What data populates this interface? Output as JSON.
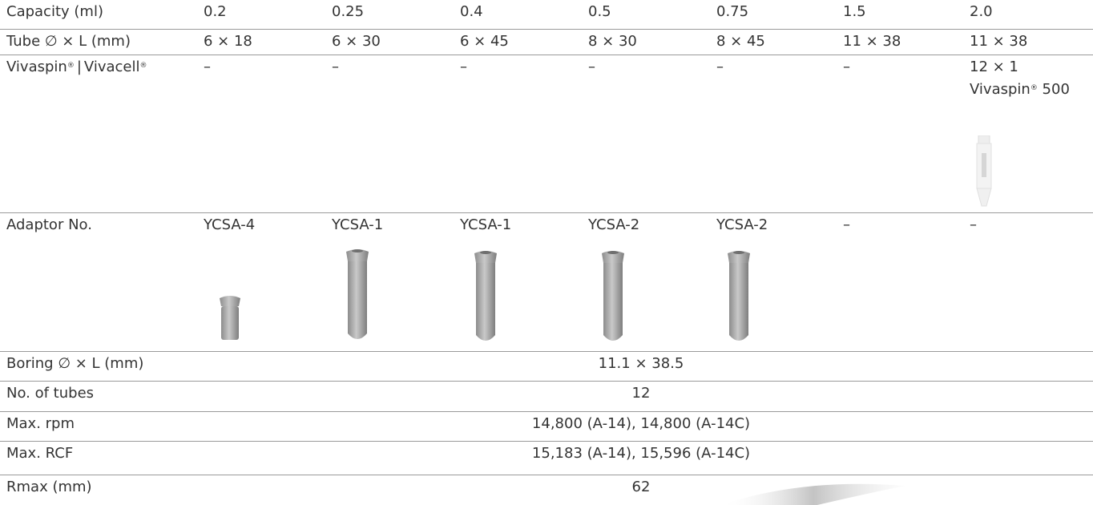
{
  "rows": {
    "capacity": {
      "label": "Capacity (ml)",
      "values": [
        "0.2",
        "0.25",
        "0.4",
        "0.5",
        "0.75",
        "1.5",
        "2.0"
      ]
    },
    "tube": {
      "label": "Tube ∅ × L (mm)",
      "values": [
        "6 × 18",
        "6 × 30",
        "6 × 45",
        "8 × 30",
        "8 × 45",
        "11 × 38",
        "11 × 38"
      ]
    },
    "vivaspin": {
      "label_a": "Vivaspin",
      "label_mark": "®",
      "label_sep": "|",
      "label_b": "Vivacell",
      "values": [
        "–",
        "–",
        "–",
        "–",
        "–",
        "–"
      ],
      "last_line1": "12 × 1",
      "last_line2_a": "Vivaspin",
      "last_line2_mark": "®",
      "last_line2_b": " 500"
    },
    "adaptor": {
      "label": "Adaptor No.",
      "values": [
        "YCSA-4",
        "YCSA-1",
        "YCSA-1",
        "YCSA-2",
        "YCSA-2",
        "–",
        "–"
      ]
    },
    "boring": {
      "label": "Boring ∅ × L (mm)",
      "value": "11.1 × 38.5"
    },
    "tubes": {
      "label": "No. of tubes",
      "value": "12"
    },
    "rpm": {
      "label": "Max. rpm",
      "value": "14,800 (A-14), 14,800 (A-14C)"
    },
    "rcf": {
      "label": "Max. RCF",
      "value": "15,183 (A-14), 15,596 (A-14C)"
    },
    "rmax": {
      "label": "Rmax (mm)",
      "value": "62"
    }
  },
  "colors": {
    "text": "#333333",
    "rule": "#9a9a9a",
    "adaptor": "#a8a8a8"
  }
}
